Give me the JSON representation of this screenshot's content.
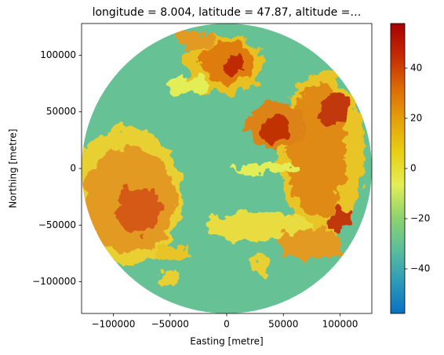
{
  "chart_data": {
    "type": "image",
    "title": "longitude = 8.004, latitude = 47.87, altitude =…",
    "xlabel": "Easting [metre]",
    "ylabel": "Northing [metre]",
    "xlim": [
      -128000,
      128000
    ],
    "ylim": [
      -128000,
      128000
    ],
    "xticks": [
      {
        "value": -100000,
        "label": "−100000"
      },
      {
        "value": -50000,
        "label": "−50000"
      },
      0,
      50000,
      100000
    ],
    "yticks": [
      {
        "value": -100000,
        "label": "−100000"
      },
      {
        "value": -50000,
        "label": "−50000"
      },
      0,
      50000,
      100000
    ],
    "clim": [
      -57.8,
      57.8
    ],
    "cticks": [
      {
        "value": -40,
        "label": "−40"
      },
      {
        "value": -20,
        "label": "−20"
      },
      0,
      20,
      40
    ],
    "cmap": [
      "#0571c2",
      "#2f9bb8",
      "#5bbf9a",
      "#8fd36d",
      "#e3ee56",
      "#e8cf12",
      "#e6a10a",
      "#dc6a06",
      "#c42a04",
      "#a80000"
    ]
  }
}
